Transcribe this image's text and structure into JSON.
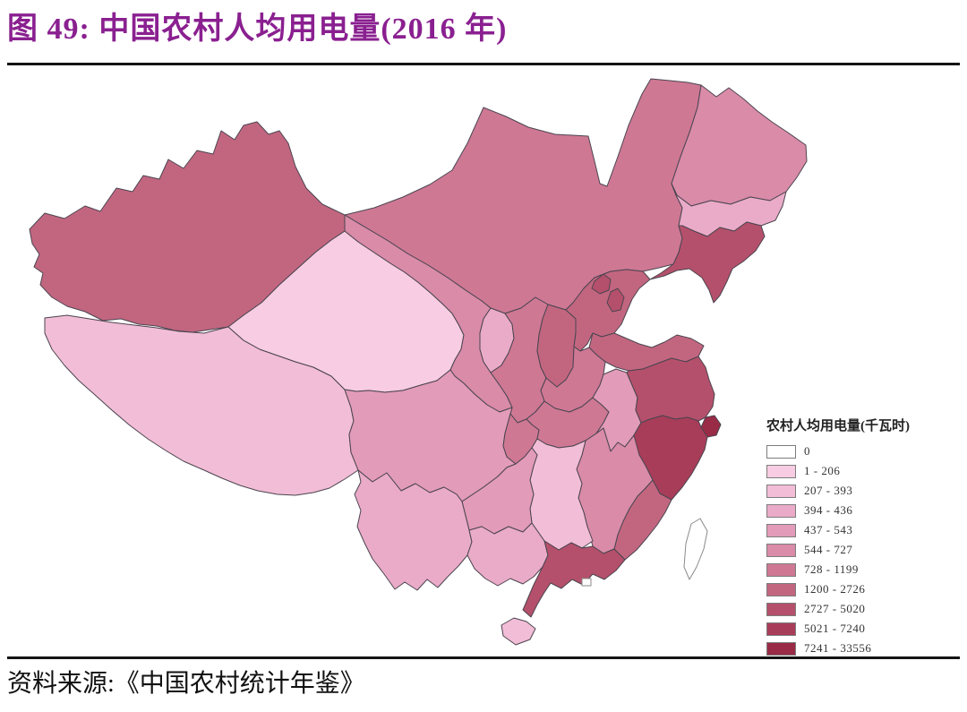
{
  "title": {
    "text": "图 49: 中国农村人均用电量(2016 年)",
    "color": "#8A2090"
  },
  "source": {
    "text": "资料来源:《中国农村统计年鉴》"
  },
  "legend": {
    "title": "农村人均用电量(千瓦时)",
    "classes": [
      {
        "label": "0",
        "color": "#FFFFFF"
      },
      {
        "label": "1 - 206",
        "color": "#F8CCE2"
      },
      {
        "label": "207 - 393",
        "color": "#F2BDD6"
      },
      {
        "label": "394 - 436",
        "color": "#EAABC8"
      },
      {
        "label": "437 - 543",
        "color": "#E29BB8"
      },
      {
        "label": "544 - 727",
        "color": "#D98BA8"
      },
      {
        "label": "728 - 1199",
        "color": "#CE7894"
      },
      {
        "label": "1200 - 2726",
        "color": "#C26680"
      },
      {
        "label": "2727 - 5020",
        "color": "#B4506B"
      },
      {
        "label": "5021 - 7240",
        "color": "#A83D59"
      },
      {
        "label": "7241 - 33556",
        "color": "#992B46"
      }
    ]
  },
  "chart_data": {
    "type": "heatmap",
    "subtype": "choropleth-map",
    "title": "中国农村人均用电量(2016 年)",
    "legend_title": "农村人均用电量(千瓦时)",
    "unit": "千瓦时",
    "legend_position": "right",
    "classes": [
      "0",
      "1 - 206",
      "207 - 393",
      "394 - 436",
      "437 - 543",
      "544 - 727",
      "728 - 1199",
      "1200 - 2726",
      "2727 - 5020",
      "5021 - 7240",
      "7241 - 33556"
    ],
    "regions": [
      {
        "id": "xinjiang",
        "class_index": 7,
        "range": "1200 - 2726"
      },
      {
        "id": "tibet",
        "class_index": 2,
        "range": "207 - 393"
      },
      {
        "id": "qinghai",
        "class_index": 1,
        "range": "1 - 206"
      },
      {
        "id": "gansu",
        "class_index": 5,
        "range": "544 - 727"
      },
      {
        "id": "ningxia",
        "class_index": 3,
        "range": "394 - 436"
      },
      {
        "id": "inner-mongolia",
        "class_index": 6,
        "range": "728 - 1199"
      },
      {
        "id": "shaanxi",
        "class_index": 6,
        "range": "728 - 1199"
      },
      {
        "id": "shanxi",
        "class_index": 7,
        "range": "1200 - 2726"
      },
      {
        "id": "hebei",
        "class_index": 7,
        "range": "1200 - 2726"
      },
      {
        "id": "beijing",
        "class_index": 8,
        "range": "2727 - 5020"
      },
      {
        "id": "tianjin",
        "class_index": 8,
        "range": "2727 - 5020"
      },
      {
        "id": "shandong",
        "class_index": 7,
        "range": "1200 - 2726"
      },
      {
        "id": "henan",
        "class_index": 6,
        "range": "728 - 1199"
      },
      {
        "id": "heilongjiang",
        "class_index": 5,
        "range": "544 - 727"
      },
      {
        "id": "jilin",
        "class_index": 3,
        "range": "394 - 436"
      },
      {
        "id": "liaoning",
        "class_index": 8,
        "range": "2727 - 5020"
      },
      {
        "id": "sichuan",
        "class_index": 4,
        "range": "437 - 543"
      },
      {
        "id": "chongqing",
        "class_index": 6,
        "range": "728 - 1199"
      },
      {
        "id": "hubei",
        "class_index": 6,
        "range": "728 - 1199"
      },
      {
        "id": "anhui",
        "class_index": 4,
        "range": "437 - 543"
      },
      {
        "id": "jiangsu",
        "class_index": 8,
        "range": "2727 - 5020"
      },
      {
        "id": "shanghai",
        "class_index": 10,
        "range": "7241 - 33556"
      },
      {
        "id": "zhejiang",
        "class_index": 9,
        "range": "5021 - 7240"
      },
      {
        "id": "fujian",
        "class_index": 7,
        "range": "1200 - 2726"
      },
      {
        "id": "jiangxi",
        "class_index": 5,
        "range": "544 - 727"
      },
      {
        "id": "hunan",
        "class_index": 2,
        "range": "207 - 393"
      },
      {
        "id": "guizhou",
        "class_index": 4,
        "range": "437 - 543"
      },
      {
        "id": "yunnan",
        "class_index": 3,
        "range": "394 - 436"
      },
      {
        "id": "guangxi",
        "class_index": 3,
        "range": "394 - 436"
      },
      {
        "id": "guangdong",
        "class_index": 8,
        "range": "2727 - 5020"
      },
      {
        "id": "hainan",
        "class_index": 2,
        "range": "207 - 393"
      },
      {
        "id": "taiwan",
        "class_index": 0,
        "range": "0"
      },
      {
        "id": "hongkong",
        "class_index": 0,
        "range": "0"
      }
    ]
  }
}
